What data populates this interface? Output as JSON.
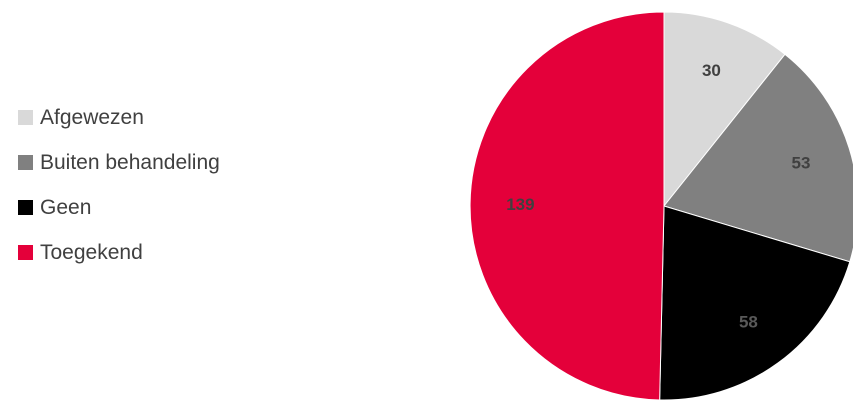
{
  "chart_data": {
    "type": "pie",
    "title": "",
    "legend_position": "left",
    "start_angle_deg": 0,
    "direction": "clockwise",
    "slices": [
      {
        "label": "Afgewezen",
        "value": 30,
        "color": "#d9d9d9",
        "label_color": "#404040"
      },
      {
        "label": "Buiten behandeling",
        "value": 53,
        "color": "#808080",
        "label_color": "#404040"
      },
      {
        "label": "Geen",
        "value": 58,
        "color": "#000000",
        "label_color": "#595959"
      },
      {
        "label": "Toegekend",
        "value": 139,
        "color": "#e4003a",
        "label_color": "#404040"
      }
    ]
  }
}
